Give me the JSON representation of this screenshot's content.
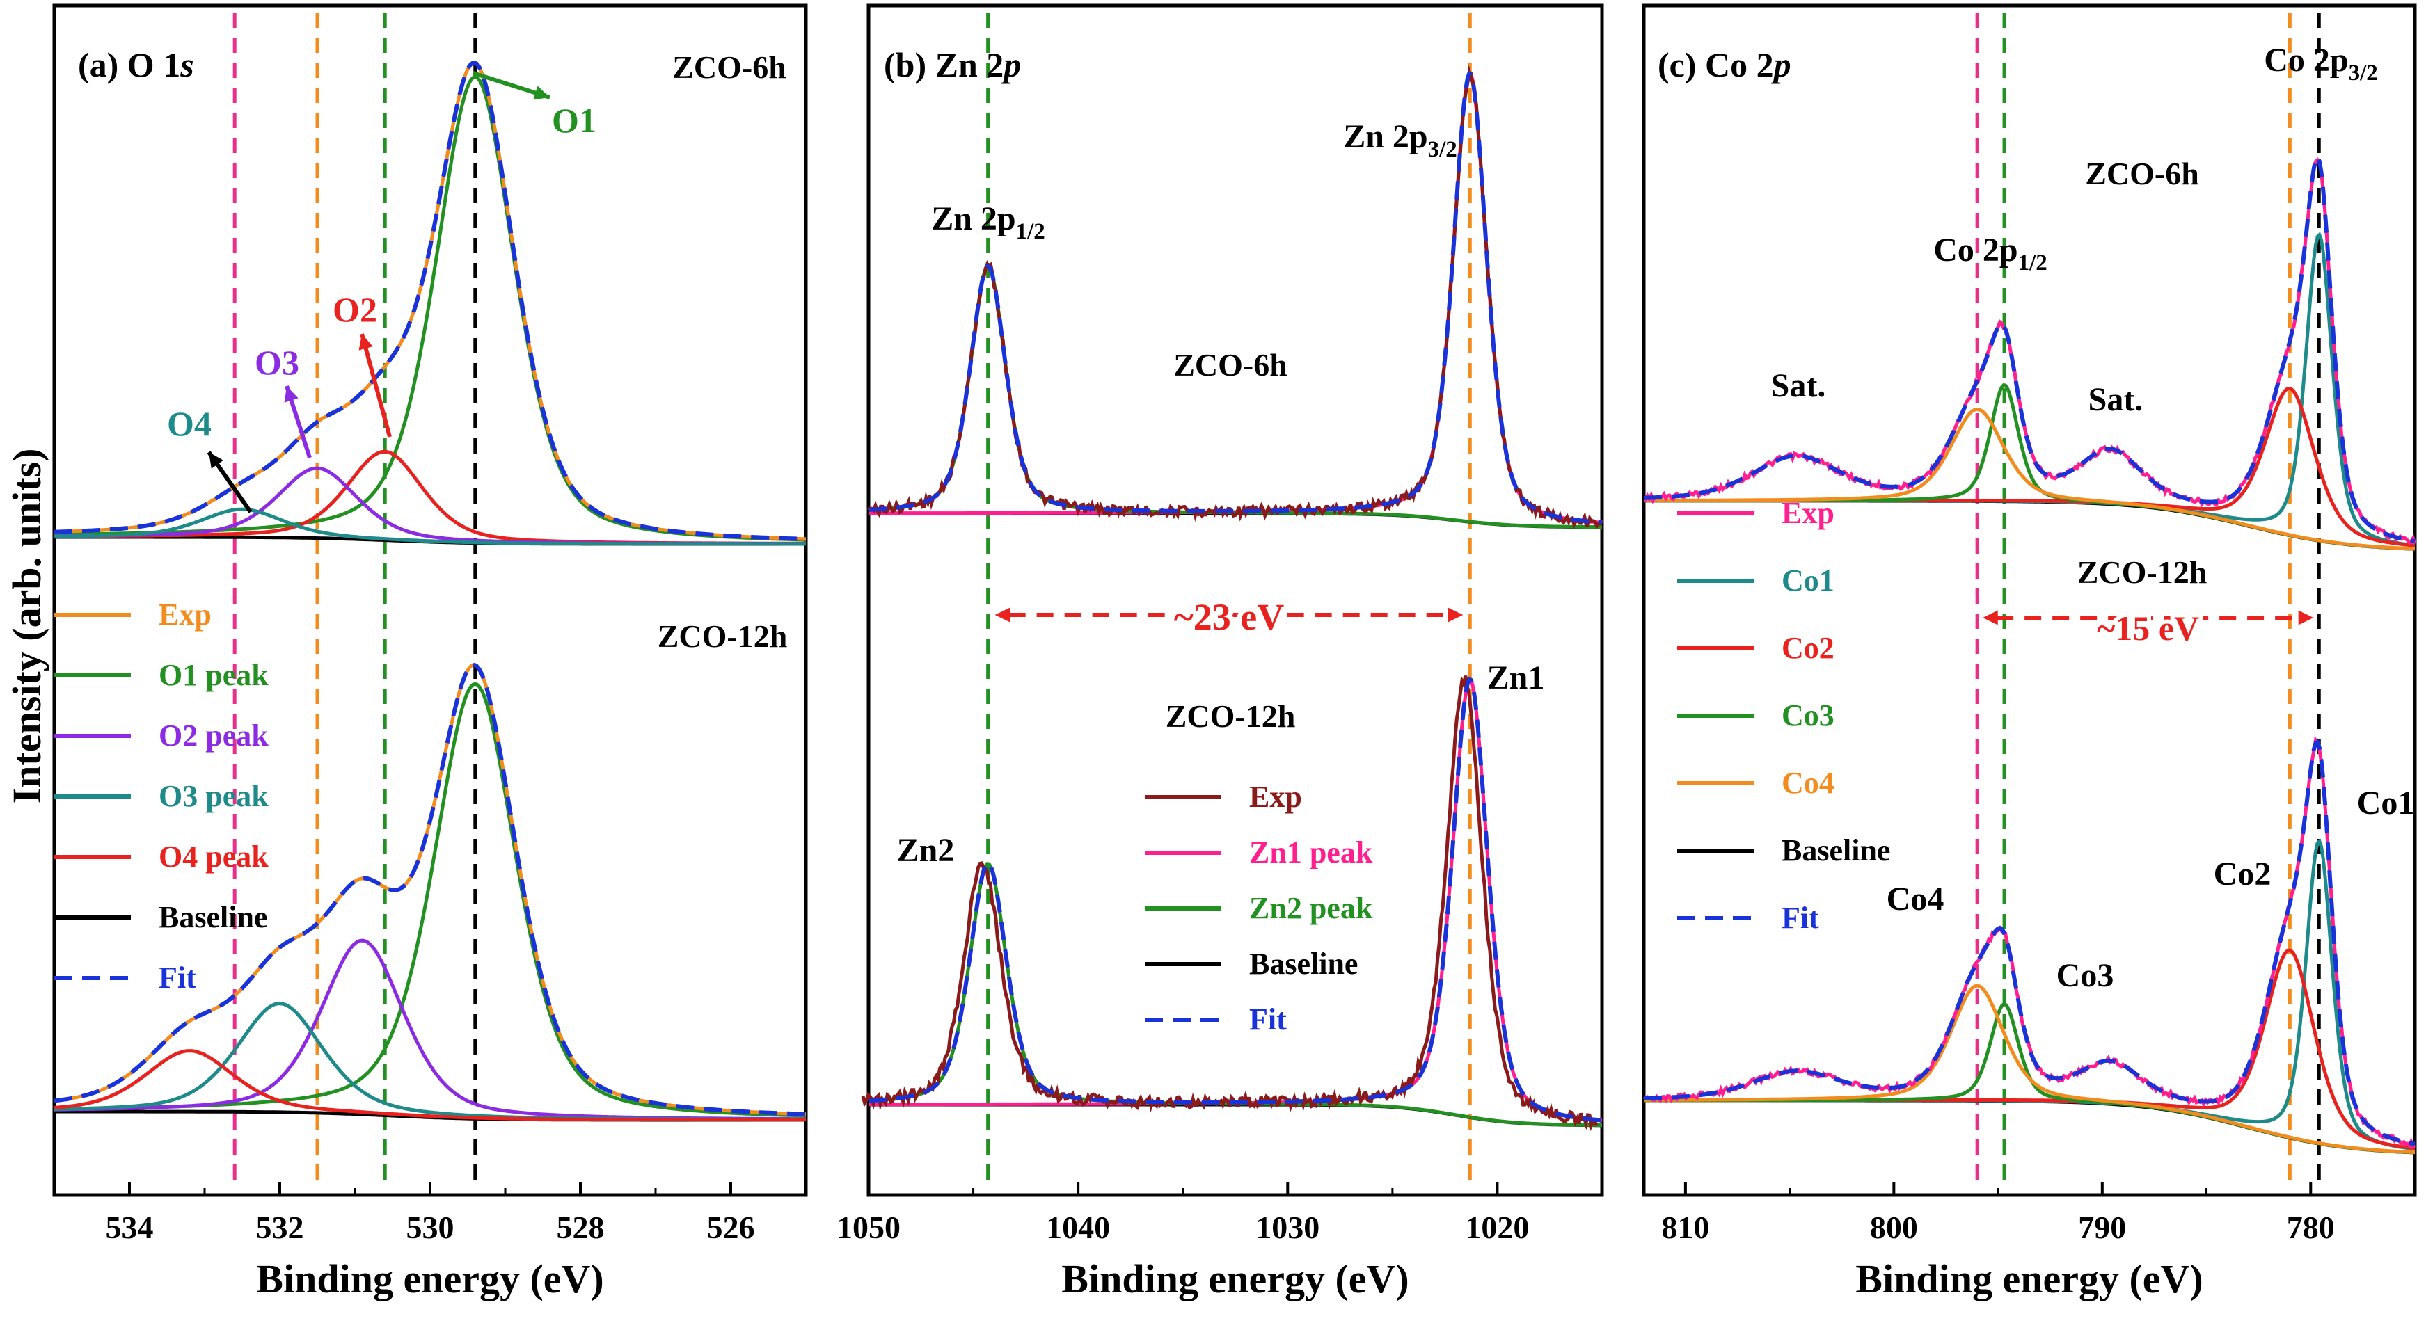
{
  "figure": {
    "ylabel": "Intensity (arb. units)"
  },
  "chart_data": [
    {
      "type": "line",
      "panel_label": "(a) O 1",
      "panel_label_italic": "s",
      "xlabel": "Binding energy (eV)",
      "xlim": [
        535,
        525
      ],
      "xticks": [
        534,
        532,
        530,
        528,
        526
      ],
      "ylabel": "Intensity (arb. units)",
      "reference_lines": [
        {
          "x": 532.6,
          "color": "#e8308a"
        },
        {
          "x": 531.5,
          "color": "#f28c1e"
        },
        {
          "x": 530.6,
          "color": "#229122"
        },
        {
          "x": 529.4,
          "color": "#000000"
        }
      ],
      "legend": [
        {
          "label": "Exp",
          "color": "#f28c1e",
          "dash": false
        },
        {
          "label": "O1 peak",
          "color": "#229122",
          "dash": false
        },
        {
          "label": "O2 peak",
          "color": "#8b2be2",
          "dash": false
        },
        {
          "label": "O3 peak",
          "color": "#1f8a8a",
          "dash": false
        },
        {
          "label": "O4 peak",
          "color": "#e8221e",
          "dash": false
        },
        {
          "label": "Baseline",
          "color": "#000000",
          "dash": false
        },
        {
          "label": "Fit",
          "color": "#1a33d9",
          "dash": true
        }
      ],
      "samples": [
        {
          "name": "ZCO-6h",
          "peaks": [
            {
              "name": "O1",
              "center": 529.4,
              "amplitude": 100,
              "fwhm": 1.25,
              "color": "#229122"
            },
            {
              "name": "O2",
              "center": 530.6,
              "amplitude": 19,
              "fwhm": 1.2,
              "color": "#e8221e"
            },
            {
              "name": "O3",
              "center": 531.5,
              "amplitude": 15,
              "fwhm": 1.25,
              "color": "#8b2be2"
            },
            {
              "name": "O4",
              "center": 532.5,
              "amplitude": 6,
              "fwhm": 1.3,
              "color": "#1f8a8a"
            }
          ],
          "annotations": [
            {
              "text": "O1",
              "color": "#229122"
            },
            {
              "text": "O2",
              "color": "#e8221e"
            },
            {
              "text": "O3",
              "color": "#8b2be2"
            },
            {
              "text": "O4",
              "color": "#1f8a8a"
            }
          ]
        },
        {
          "name": "ZCO-12h",
          "peaks": [
            {
              "name": "O1",
              "center": 529.4,
              "amplitude": 100,
              "fwhm": 1.3,
              "color": "#229122"
            },
            {
              "name": "O2",
              "center": 530.9,
              "amplitude": 40,
              "fwhm": 1.3,
              "color": "#8b2be2"
            },
            {
              "name": "O3",
              "center": 532.0,
              "amplitude": 25,
              "fwhm": 1.35,
              "color": "#1f8a8a"
            },
            {
              "name": "O4",
              "center": 533.2,
              "amplitude": 14,
              "fwhm": 1.4,
              "color": "#e8221e"
            }
          ]
        }
      ]
    },
    {
      "type": "line",
      "panel_label": "(b) Zn 2",
      "panel_label_italic": "p",
      "xlabel": "Binding energy (eV)",
      "xlim": [
        1050,
        1015
      ],
      "xticks": [
        1050,
        1040,
        1030,
        1020
      ],
      "reference_lines": [
        {
          "x": 1044.3,
          "color": "#229122"
        },
        {
          "x": 1021.3,
          "color": "#f28c1e"
        }
      ],
      "separation_label": "~23 eV",
      "legend": [
        {
          "label": "Exp",
          "color": "#8b1a1a",
          "dash": false
        },
        {
          "label": "Zn1 peak",
          "color": "#ff1f8f",
          "dash": false
        },
        {
          "label": "Zn2 peak",
          "color": "#229122",
          "dash": false
        },
        {
          "label": "Baseline",
          "color": "#000000",
          "dash": false
        },
        {
          "label": "Fit",
          "color": "#1a33d9",
          "dash": true
        }
      ],
      "samples": [
        {
          "name": "ZCO-6h",
          "peak_labels": [
            "Zn 2p",
            "Zn 2p"
          ],
          "peak_label_subs": [
            "1/2",
            "3/2"
          ],
          "peaks": [
            {
              "name": "Zn1",
              "center": 1021.3,
              "amplitude": 100,
              "fwhm": 1.9,
              "color": "#ff1f8f"
            },
            {
              "name": "Zn2",
              "center": 1044.3,
              "amplitude": 55,
              "fwhm": 2.0,
              "color": "#229122"
            }
          ]
        },
        {
          "name": "ZCO-12h",
          "peak_labels": [
            "Zn1",
            "Zn2"
          ],
          "peaks": [
            {
              "name": "Zn1",
              "center": 1021.3,
              "amplitude": 100,
              "fwhm": 2.0,
              "color": "#ff1f8f"
            },
            {
              "name": "Zn2",
              "center": 1044.3,
              "amplitude": 55,
              "fwhm": 2.1,
              "color": "#229122"
            }
          ]
        }
      ]
    },
    {
      "type": "line",
      "panel_label": "(c) Co 2",
      "panel_label_italic": "p",
      "xlabel": "Binding energy (eV)",
      "xlim": [
        812,
        775
      ],
      "xticks": [
        810,
        800,
        790,
        780
      ],
      "reference_lines": [
        {
          "x": 796.0,
          "color": "#e8308a"
        },
        {
          "x": 794.7,
          "color": "#229122"
        },
        {
          "x": 781.0,
          "color": "#f28c1e"
        },
        {
          "x": 779.6,
          "color": "#000000"
        }
      ],
      "separation_label": "~15 eV",
      "legend": [
        {
          "label": "Exp",
          "color": "#ff1f8f",
          "dash": false
        },
        {
          "label": "Co1",
          "color": "#1f8a8a",
          "dash": false
        },
        {
          "label": "Co2",
          "color": "#e8221e",
          "dash": false
        },
        {
          "label": "Co3",
          "color": "#229122",
          "dash": false
        },
        {
          "label": "Co4",
          "color": "#f28c1e",
          "dash": false
        },
        {
          "label": "Baseline",
          "color": "#000000",
          "dash": false
        },
        {
          "label": "Fit",
          "color": "#1a33d9",
          "dash": true
        }
      ],
      "samples": [
        {
          "name": "ZCO-6h",
          "annotations": [
            "Co 2p",
            "Co 2p",
            "Sat.",
            "Sat."
          ],
          "annotation_subs": [
            "3/2",
            "1/2",
            "",
            ""
          ],
          "peaks": [
            {
              "name": "Co1",
              "center": 779.6,
              "amplitude": 100,
              "fwhm": 1.5,
              "color": "#1f8a8a"
            },
            {
              "name": "Co2",
              "center": 781.0,
              "amplitude": 48,
              "fwhm": 2.8,
              "color": "#e8221e"
            },
            {
              "name": "Co3",
              "center": 794.7,
              "amplitude": 38,
              "fwhm": 1.6,
              "color": "#229122"
            },
            {
              "name": "Co4",
              "center": 796.0,
              "amplitude": 30,
              "fwhm": 3.0,
              "color": "#f28c1e"
            },
            {
              "name": "Sat.",
              "center": 789.6,
              "amplitude": 16,
              "fwhm": 3.5,
              "color": "#ff1f8f"
            },
            {
              "name": "Sat.",
              "center": 804.7,
              "amplitude": 14,
              "fwhm": 5.0,
              "color": "#ff1f8f"
            }
          ]
        },
        {
          "name": "ZCO-12h",
          "annotations": [
            "Co1",
            "Co2",
            "Co3",
            "Co4"
          ],
          "peaks": [
            {
              "name": "Co1",
              "center": 779.6,
              "amplitude": 100,
              "fwhm": 1.5,
              "color": "#1f8a8a"
            },
            {
              "name": "Co2",
              "center": 781.0,
              "amplitude": 62,
              "fwhm": 2.8,
              "color": "#e8221e"
            },
            {
              "name": "Co3",
              "center": 794.7,
              "amplitude": 32,
              "fwhm": 1.6,
              "color": "#229122"
            },
            {
              "name": "Co4",
              "center": 796.0,
              "amplitude": 38,
              "fwhm": 3.0,
              "color": "#f28c1e"
            },
            {
              "name": "Sat.",
              "center": 789.6,
              "amplitude": 12,
              "fwhm": 3.5,
              "color": "#ff1f8f"
            },
            {
              "name": "Sat.",
              "center": 804.7,
              "amplitude": 9,
              "fwhm": 5.0,
              "color": "#ff1f8f"
            }
          ]
        }
      ]
    }
  ]
}
